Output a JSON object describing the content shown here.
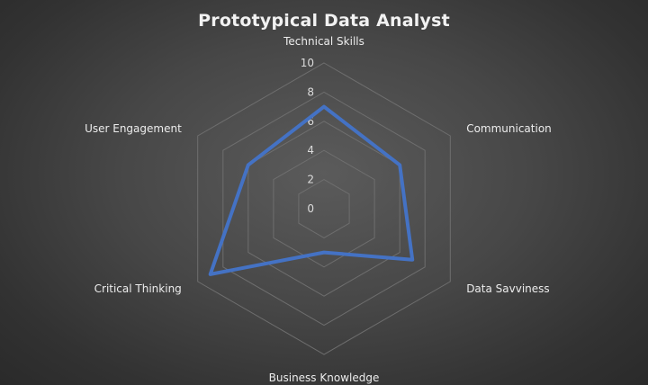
{
  "chart_data": {
    "type": "radar",
    "title": "Prototypical Data Analyst",
    "categories": [
      "Technical Skills",
      "Communication",
      "Data Savviness",
      "Business Knowledge",
      "Critical Thinking",
      "User Engagement"
    ],
    "series": [
      {
        "values": [
          7,
          6,
          7,
          3,
          9,
          6
        ]
      }
    ],
    "rlim": [
      0,
      10
    ],
    "ticks": [
      0,
      2,
      4,
      6,
      8,
      10
    ],
    "grid": true,
    "legend": "none",
    "colors": {
      "series": "#4472c4",
      "grid": "#6e6e6e",
      "text": "#ececec"
    }
  }
}
